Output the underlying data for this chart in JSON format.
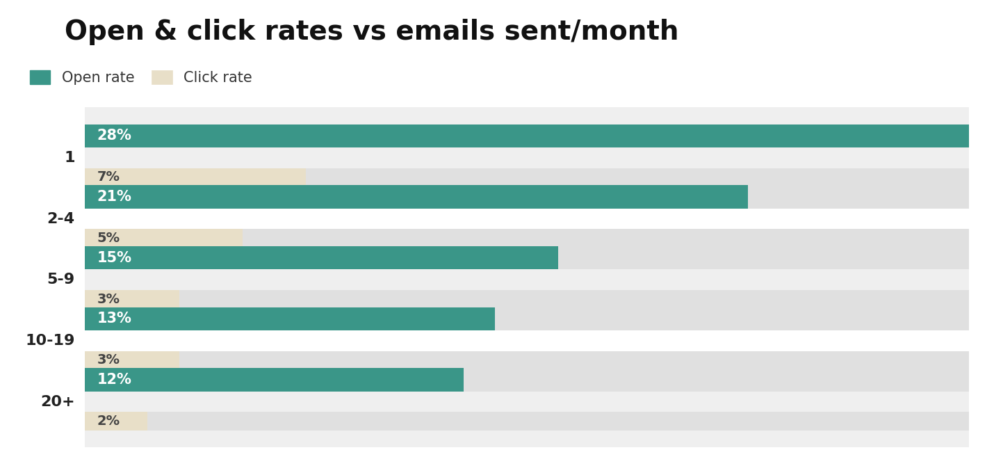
{
  "title": "Open & click rates vs emails sent/month",
  "categories": [
    "1",
    "2-4",
    "5-9",
    "10-19",
    "20+"
  ],
  "open_rates": [
    28,
    21,
    15,
    13,
    12
  ],
  "click_rates": [
    7,
    5,
    3,
    3,
    2
  ],
  "open_color": "#3a9688",
  "click_color": "#e8dfc8",
  "open_label": "Open rate",
  "click_label": "Click rate",
  "max_value": 28,
  "title_fontsize": 28,
  "legend_fontsize": 15,
  "bar_label_open_fontsize": 15,
  "bar_label_click_fontsize": 14,
  "ytick_fontsize": 16,
  "background_color": "#ffffff",
  "row_bg_even": "#efefef",
  "row_bg_odd": "#ffffff",
  "bar_bg_color": "#e0e0e0",
  "divider_color": "#bbbbbb"
}
